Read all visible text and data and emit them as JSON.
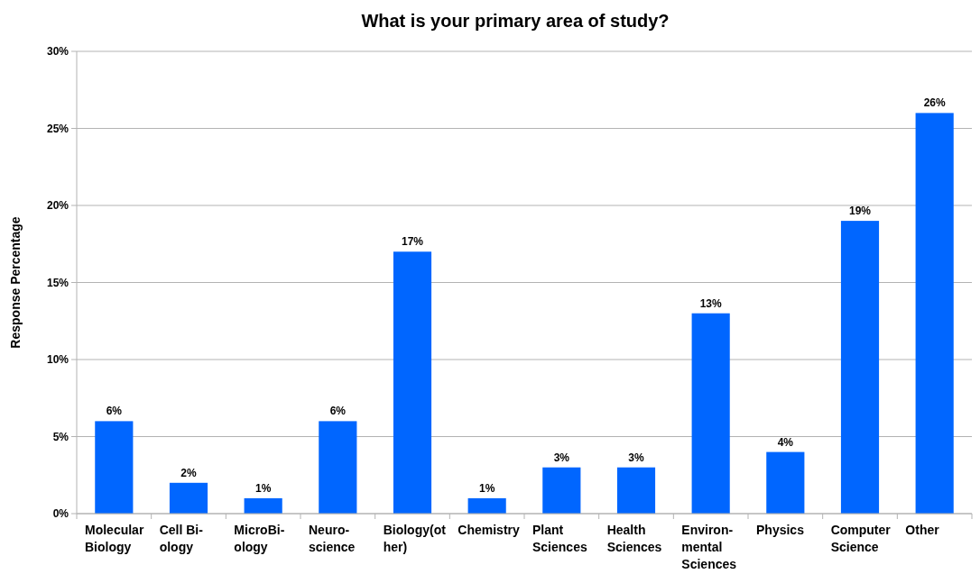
{
  "chart_data": {
    "type": "bar",
    "title": "What is your primary area of study?",
    "ylabel": "Response Percentage",
    "categories": [
      "Molecular\nBiology",
      "Cell Bi-\nology",
      "MicroBi-\nology",
      "Neuro-\nscience",
      "Biology(ot\nher)",
      "Chemistry",
      "Plant\nSciences",
      "Health\nSciences",
      "Environ-\nmental\nSciences",
      "Physics",
      "Computer\nScience",
      "Other"
    ],
    "series": [
      {
        "color": "#0066ff",
        "values": [
          6,
          2,
          1,
          6,
          17,
          1,
          3,
          3,
          13,
          4,
          19,
          26
        ],
        "value_labels": [
          "6%",
          "2%",
          "1%",
          "6%",
          "17%",
          "1%",
          "3%",
          "3%",
          "13%",
          "4%",
          "19%",
          "26%"
        ]
      }
    ],
    "ylim": [
      0,
      30
    ],
    "yticks": [
      {
        "value": 0,
        "label": "0%"
      },
      {
        "value": 5,
        "label": "5%"
      },
      {
        "value": 10,
        "label": "10%"
      },
      {
        "value": 15,
        "label": "15%"
      },
      {
        "value": 20,
        "label": "20%"
      },
      {
        "value": 25,
        "label": "25%"
      },
      {
        "value": 30,
        "label": "30%"
      }
    ],
    "grid": "y"
  }
}
